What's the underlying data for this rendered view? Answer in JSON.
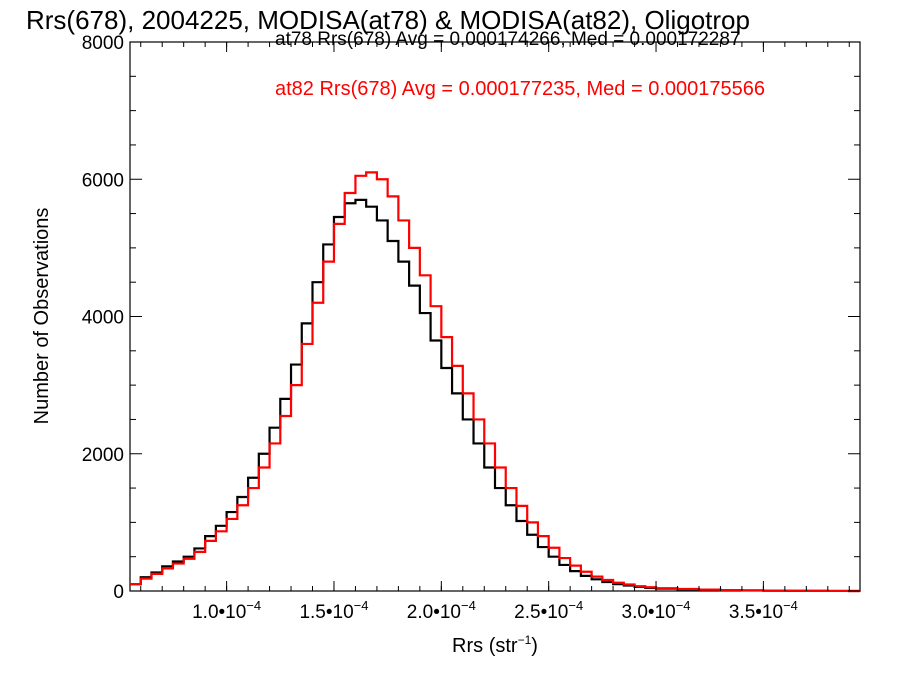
{
  "chart_data": {
    "type": "line",
    "title": "Rrs(678), 2004225, MODISA(at78) & MODISA(at82), Oligotrop",
    "xlabel": "Rrs (str",
    "xlabel_sup": "−1",
    "xlabel_close": ")",
    "ylabel": "Number of Observations",
    "xlim": [
      5.5e-05,
      0.000395
    ],
    "ylim": [
      0,
      8000
    ],
    "x_tick_values": [
      0.0001,
      0.00015,
      0.0002,
      0.00025,
      0.0003,
      0.00035
    ],
    "x_tick_labels": [
      {
        "mant": "1.0•10",
        "exp": "−4"
      },
      {
        "mant": "1.5•10",
        "exp": "−4"
      },
      {
        "mant": "2.0•10",
        "exp": "−4"
      },
      {
        "mant": "2.5•10",
        "exp": "−4"
      },
      {
        "mant": "3.0•10",
        "exp": "−4"
      },
      {
        "mant": "3.5•10",
        "exp": "−4"
      }
    ],
    "y_tick_values": [
      0,
      2000,
      4000,
      6000,
      8000
    ],
    "y_tick_labels": [
      "0",
      "2000",
      "4000",
      "6000",
      "8000"
    ],
    "annotations": [
      "at78 Rrs(678) Avg = 0.000174266, Med = 0.000172287",
      "at82 Rrs(678) Avg = 0.000177235, Med = 0.000175566"
    ],
    "series": [
      {
        "color": "#000000",
        "x": [
          5.5e-05,
          6e-05,
          6.5e-05,
          7e-05,
          7.5e-05,
          8e-05,
          8.5e-05,
          9e-05,
          9.5e-05,
          0.0001,
          0.000105,
          0.00011,
          0.000115,
          0.00012,
          0.000125,
          0.00013,
          0.000135,
          0.00014,
          0.000145,
          0.00015,
          0.000155,
          0.00016,
          0.000165,
          0.00017,
          0.000175,
          0.00018,
          0.000185,
          0.00019,
          0.000195,
          0.0002,
          0.000205,
          0.00021,
          0.000215,
          0.00022,
          0.000225,
          0.00023,
          0.000235,
          0.00024,
          0.000245,
          0.00025,
          0.000255,
          0.00026,
          0.000265,
          0.00027,
          0.000275,
          0.00028,
          0.000285,
          0.00029,
          0.000295,
          0.0003,
          0.00031,
          0.00032,
          0.00033,
          0.00034,
          0.00035,
          0.00036,
          0.00037,
          0.00038,
          0.00039,
          0.000395
        ],
        "y": [
          100,
          200,
          270,
          360,
          430,
          500,
          620,
          800,
          950,
          1150,
          1370,
          1650,
          2000,
          2380,
          2800,
          3300,
          3900,
          4500,
          5050,
          5450,
          5650,
          5700,
          5600,
          5400,
          5100,
          4800,
          4450,
          4050,
          3650,
          3250,
          2880,
          2500,
          2150,
          1800,
          1500,
          1250,
          1020,
          820,
          640,
          500,
          380,
          290,
          220,
          170,
          130,
          100,
          80,
          60,
          45,
          35,
          25,
          18,
          12,
          8,
          5,
          3,
          2,
          1,
          0,
          0
        ]
      },
      {
        "color": "#ff0000",
        "x": [
          5.5e-05,
          6e-05,
          6.5e-05,
          7e-05,
          7.5e-05,
          8e-05,
          8.5e-05,
          9e-05,
          9.5e-05,
          0.0001,
          0.000105,
          0.00011,
          0.000115,
          0.00012,
          0.000125,
          0.00013,
          0.000135,
          0.00014,
          0.000145,
          0.00015,
          0.000155,
          0.00016,
          0.000165,
          0.00017,
          0.000175,
          0.00018,
          0.000185,
          0.00019,
          0.000195,
          0.0002,
          0.000205,
          0.00021,
          0.000215,
          0.00022,
          0.000225,
          0.00023,
          0.000235,
          0.00024,
          0.000245,
          0.00025,
          0.000255,
          0.00026,
          0.000265,
          0.00027,
          0.000275,
          0.00028,
          0.000285,
          0.00029,
          0.000295,
          0.0003,
          0.00031,
          0.00032,
          0.00033,
          0.00034,
          0.00035,
          0.00036,
          0.00037,
          0.00038,
          0.00039,
          0.000395
        ],
        "y": [
          100,
          180,
          250,
          330,
          400,
          470,
          570,
          730,
          870,
          1050,
          1250,
          1500,
          1800,
          2150,
          2550,
          3000,
          3600,
          4200,
          4800,
          5350,
          5800,
          6050,
          6100,
          6000,
          5750,
          5400,
          5000,
          4600,
          4150,
          3700,
          3280,
          2880,
          2500,
          2150,
          1800,
          1500,
          1240,
          1000,
          800,
          630,
          480,
          370,
          280,
          210,
          160,
          120,
          95,
          70,
          55,
          40,
          30,
          20,
          14,
          9,
          6,
          4,
          2,
          1,
          0,
          0
        ]
      }
    ]
  }
}
